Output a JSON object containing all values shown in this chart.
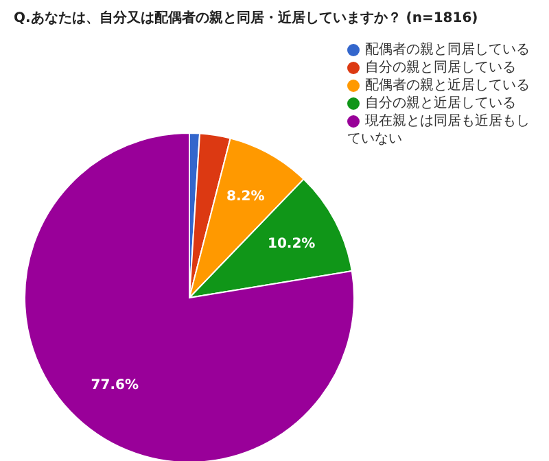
{
  "chart_data": {
    "type": "pie",
    "title": "Q.あなたは、自分又は配偶者の親と同居・近居していますか？ (n=1816)",
    "categories": [
      "配偶者の親と同居している",
      "自分の親と同居している",
      "配偶者の親と近居している",
      "自分の親と近居している",
      "現在親とは同居も近居もしていない"
    ],
    "values": [
      1.0,
      3.0,
      8.2,
      10.2,
      77.6
    ],
    "value_labels": [
      null,
      null,
      "8.2%",
      "10.2%",
      "77.6%"
    ],
    "colors": [
      "#3366cc",
      "#dc3912",
      "#ff9900",
      "#109618",
      "#990099"
    ],
    "legend": "right"
  }
}
